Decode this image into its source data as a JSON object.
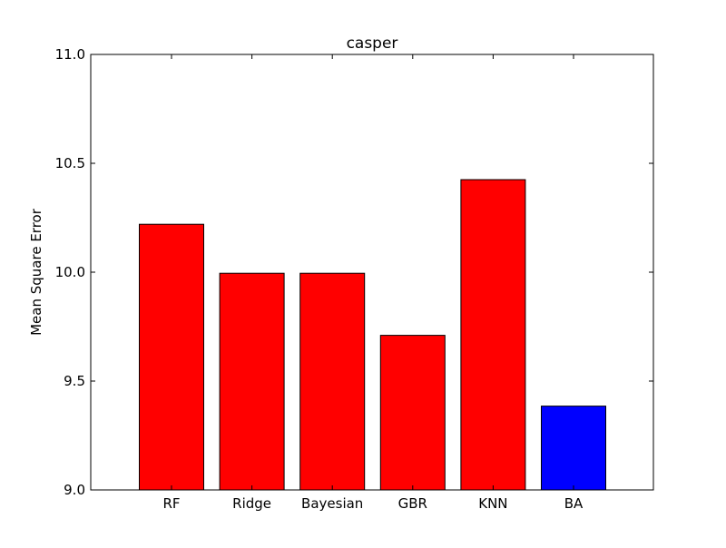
{
  "chart_data": {
    "type": "bar",
    "title": "casper",
    "xlabel": "",
    "ylabel": "Mean Square Error",
    "categories": [
      "RF",
      "Ridge",
      "Bayesian",
      "GBR",
      "KNN",
      "BA"
    ],
    "values": [
      10.22,
      9.995,
      9.995,
      9.71,
      10.425,
      9.385
    ],
    "colors": [
      "#ff0000",
      "#ff0000",
      "#ff0000",
      "#ff0000",
      "#ff0000",
      "#0000ff"
    ],
    "ylim": [
      9.0,
      11.0
    ],
    "yticks": [
      9.0,
      9.5,
      10.0,
      10.5,
      11.0
    ],
    "ytick_labels": [
      "9.0",
      "9.5",
      "10.0",
      "10.5",
      "11.0"
    ],
    "grid": false,
    "legend": "none"
  }
}
